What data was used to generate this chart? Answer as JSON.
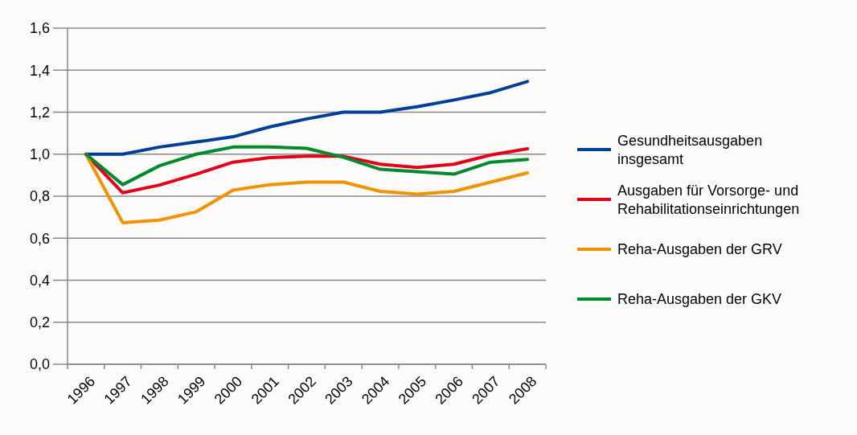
{
  "chart_data": {
    "type": "line",
    "categories": [
      "1996",
      "1997",
      "1998",
      "1999",
      "2000",
      "2001",
      "2002",
      "2003",
      "2004",
      "2005",
      "2006",
      "2007",
      "2008"
    ],
    "ylim": [
      0,
      1.6
    ],
    "yticks": [
      {
        "value": 0,
        "label": "0,0"
      },
      {
        "value": 0.2,
        "label": "0,2"
      },
      {
        "value": 0.4,
        "label": "0,4"
      },
      {
        "value": 0.6,
        "label": "0,6"
      },
      {
        "value": 0.8,
        "label": "0,8"
      },
      {
        "value": 1.0,
        "label": "1,0"
      },
      {
        "value": 1.2,
        "label": "1,2"
      },
      {
        "value": 1.4,
        "label": "1,4"
      },
      {
        "value": 1.6,
        "label": "1,6"
      }
    ],
    "grid": "y",
    "legend": "right",
    "marker": "none",
    "line_style": "solid",
    "series": [
      {
        "name": "Gesundheitsausgaben insgesamt",
        "color": "#003f98",
        "values": [
          1.0,
          1.0,
          1.034,
          1.058,
          1.083,
          1.13,
          1.168,
          1.2,
          1.2,
          1.226,
          1.258,
          1.293,
          1.346
        ]
      },
      {
        "name": "Ausgaben für Vorsorge- und Rehabilitationseinrichtungen",
        "color": "#e2001a",
        "values": [
          1.0,
          0.816,
          0.853,
          0.905,
          0.962,
          0.984,
          0.99,
          0.99,
          0.952,
          0.937,
          0.952,
          0.996,
          1.026
        ]
      },
      {
        "name": "Reha-Ausgaben der GRV",
        "color": "#f39200",
        "values": [
          1.0,
          0.674,
          0.686,
          0.726,
          0.829,
          0.855,
          0.867,
          0.867,
          0.823,
          0.81,
          0.823,
          0.867,
          0.911
        ]
      },
      {
        "name": "Reha-Ausgaben der GKV",
        "color": "#00892d",
        "values": [
          1.0,
          0.855,
          0.945,
          1.0,
          1.034,
          1.034,
          1.028,
          0.985,
          0.928,
          0.917,
          0.905,
          0.962,
          0.975
        ]
      }
    ]
  }
}
